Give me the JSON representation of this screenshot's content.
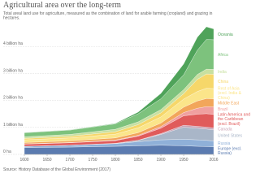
{
  "chart_data": {
    "type": "stacked_area",
    "title": "Agricultural area over the long-term",
    "subtitle": "Total areal land use for agriculture, measured as the combination of land for arable farming (cropland) and grazing in hectares.",
    "source": "Source: History Database of the Global Environment (2017)",
    "x": [
      1600,
      1700,
      1800,
      1850,
      1900,
      1950,
      1980,
      2000,
      2016
    ],
    "xlim": [
      1600,
      2016
    ],
    "xticks": [
      1600,
      1650,
      1700,
      1750,
      1800,
      1850,
      1900,
      1950,
      2016
    ],
    "ylim": [
      0,
      5000000000
    ],
    "yticks": [
      {
        "value": 0,
        "label": "0 ha"
      },
      {
        "value": 1000000000,
        "label": "1 billion ha"
      },
      {
        "value": 2000000000,
        "label": "2 billion ha"
      },
      {
        "value": 3000000000,
        "label": "3 billion ha"
      },
      {
        "value": 4000000000,
        "label": "4 billion ha"
      }
    ],
    "grid": true,
    "series": [
      {
        "name": "Europe (excl. Russia)",
        "color": "#5b7bb0",
        "values": [
          250000000,
          270000000,
          300000000,
          320000000,
          340000000,
          320000000,
          300000000,
          290000000,
          280000000
        ]
      },
      {
        "name": "Russia",
        "color": "#8fb0d8",
        "values": [
          50000000,
          70000000,
          100000000,
          150000000,
          200000000,
          240000000,
          240000000,
          230000000,
          220000000
        ]
      },
      {
        "name": "United States",
        "color": "#a9b6c8",
        "values": [
          0,
          0,
          10000000,
          50000000,
          200000000,
          450000000,
          430000000,
          420000000,
          410000000
        ]
      },
      {
        "name": "Canada",
        "color": "#c9a3b5",
        "values": [
          0,
          0,
          0,
          5000000,
          30000000,
          70000000,
          70000000,
          70000000,
          70000000
        ]
      },
      {
        "name": "Latin America and the Caribbean (excl. Brazil)",
        "color": "#e05b5b",
        "values": [
          80000000,
          90000000,
          100000000,
          150000000,
          200000000,
          350000000,
          450000000,
          500000000,
          500000000
        ]
      },
      {
        "name": "Brazil",
        "color": "#f0a0a0",
        "values": [
          10000000,
          10000000,
          20000000,
          30000000,
          60000000,
          120000000,
          220000000,
          260000000,
          280000000
        ]
      },
      {
        "name": "Middle East",
        "color": "#f2a65a",
        "values": [
          50000000,
          60000000,
          80000000,
          100000000,
          130000000,
          200000000,
          270000000,
          300000000,
          300000000
        ]
      },
      {
        "name": "Rest of Asia (excl. India & China)",
        "color": "#fbe58a",
        "values": [
          100000000,
          110000000,
          140000000,
          180000000,
          230000000,
          300000000,
          350000000,
          380000000,
          380000000
        ]
      },
      {
        "name": "China",
        "color": "#f6d76a",
        "values": [
          50000000,
          60000000,
          90000000,
          120000000,
          150000000,
          200000000,
          450000000,
          530000000,
          530000000
        ]
      },
      {
        "name": "India",
        "color": "#c8e0a0",
        "values": [
          60000000,
          70000000,
          90000000,
          100000000,
          120000000,
          150000000,
          180000000,
          180000000,
          180000000
        ]
      },
      {
        "name": "Africa",
        "color": "#7dc27d",
        "values": [
          150000000,
          160000000,
          200000000,
          300000000,
          400000000,
          550000000,
          900000000,
          1100000000,
          1100000000
        ]
      },
      {
        "name": "Oceania",
        "color": "#4fa35a",
        "values": [
          10000000,
          10000000,
          20000000,
          60000000,
          200000000,
          400000000,
          480000000,
          470000000,
          400000000
        ]
      }
    ]
  }
}
